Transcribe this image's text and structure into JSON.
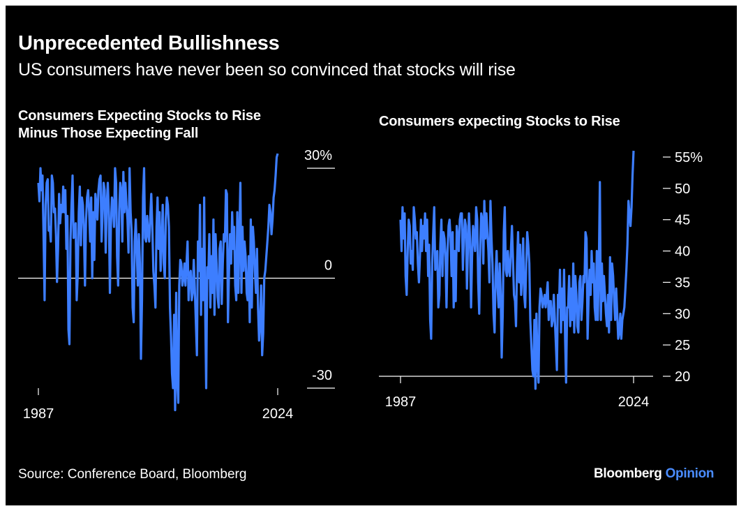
{
  "title": "Unprecedented Bullishness",
  "subtitle": "US consumers have never been so convinced that stocks will rise",
  "source": "Source: Conference Board, Bloomberg",
  "brand": {
    "name": "Bloomberg",
    "accent": "Opinion"
  },
  "colors": {
    "background": "#000000",
    "line": "#3d7eff",
    "text": "#ffffff",
    "brand_accent": "#4a8cff"
  },
  "chart_data": [
    {
      "type": "line",
      "title": "Consumers Expecting Stocks to Rise\nMinus Those Expecting Fall",
      "x_start": 1987,
      "x_end": 2024,
      "xlim": [
        1987,
        2024
      ],
      "ylim": [
        -30,
        30
      ],
      "x_ticks": [
        1987,
        2024
      ],
      "y_ticks": [
        {
          "value": 30,
          "label": "30%"
        },
        {
          "value": 0,
          "label": "0"
        },
        {
          "value": -30,
          "label": "-30"
        }
      ],
      "zero_line": true,
      "y_axis_side": "right",
      "series": [
        {
          "values": [
            26,
            21,
            30,
            24,
            28,
            12,
            -6,
            20,
            26,
            27,
            13,
            14,
            10,
            28,
            26,
            18,
            19,
            12,
            -1,
            8,
            23,
            15,
            20,
            18,
            25,
            18,
            24,
            8,
            17,
            -14,
            -18,
            10,
            20,
            28,
            11,
            13,
            15,
            -6,
            1,
            18,
            25,
            9,
            22,
            20,
            13,
            -2,
            16,
            22,
            24,
            18,
            10,
            22,
            0,
            18,
            5,
            23,
            20,
            16,
            24,
            27,
            28,
            10,
            18,
            26,
            24,
            7,
            20,
            26,
            18,
            -4,
            14,
            22,
            20,
            14,
            30,
            26,
            6,
            -2,
            18,
            26,
            24,
            10,
            29,
            18,
            26,
            20,
            16,
            7,
            30,
            18,
            13,
            -8,
            -12,
            10,
            16,
            7,
            -2,
            12,
            4,
            -22,
            -6,
            22,
            30,
            11,
            10,
            17,
            12,
            10,
            17,
            23,
            14,
            2,
            -2,
            -8,
            14,
            22,
            8,
            18,
            2,
            10,
            20,
            4,
            0,
            16,
            22,
            20,
            14,
            -8,
            -16,
            -26,
            -30,
            -10,
            -36,
            -4,
            -28,
            -34,
            -2,
            5,
            4,
            -2,
            0,
            4,
            -2,
            4,
            10,
            -6,
            1,
            2,
            -6,
            -4,
            5,
            -3,
            -12,
            -21,
            10,
            2,
            20,
            -10,
            8,
            -6,
            22,
            -9,
            -30,
            3,
            0,
            12,
            -8,
            6,
            -4,
            16,
            -10,
            12,
            4,
            -5,
            -8,
            8,
            10,
            -7,
            4,
            12,
            10,
            24,
            23,
            -12,
            2,
            12,
            4,
            18,
            8,
            14,
            -2,
            -6,
            18,
            -4,
            12,
            26,
            -4,
            14,
            2,
            10,
            6,
            -4,
            -6,
            6,
            -12,
            16,
            -8,
            14,
            10,
            2,
            -4,
            8,
            -8,
            -17,
            -12,
            -2,
            -21,
            -15,
            0,
            2,
            6,
            10,
            14,
            20,
            18,
            12,
            16,
            22,
            24,
            28,
            33,
            34
          ]
        }
      ]
    },
    {
      "type": "line",
      "title": "Consumers expecting Stocks to Rise",
      "x_start": 1987,
      "x_end": 2024,
      "xlim": [
        1987,
        2024
      ],
      "ylim": [
        20,
        56
      ],
      "x_ticks": [
        1987,
        2024
      ],
      "y_ticks": [
        {
          "value": 55,
          "label": "55%"
        },
        {
          "value": 50,
          "label": "50"
        },
        {
          "value": 45,
          "label": "45"
        },
        {
          "value": 40,
          "label": "40"
        },
        {
          "value": 35,
          "label": "35"
        },
        {
          "value": 30,
          "label": "30"
        },
        {
          "value": 25,
          "label": "25"
        },
        {
          "value": 20,
          "label": "20"
        }
      ],
      "y_axis_side": "right",
      "series": [
        {
          "values": [
            45,
            40,
            47,
            42,
            46,
            36,
            33,
            40,
            45,
            44,
            38,
            40,
            37,
            47,
            45,
            42,
            43,
            38,
            35,
            39,
            45,
            40,
            44,
            42,
            46,
            40,
            45,
            36,
            41,
            29,
            26,
            38,
            43,
            47,
            37,
            39,
            40,
            31,
            33,
            41,
            45,
            36,
            43,
            42,
            39,
            31,
            40,
            44,
            45,
            42,
            36,
            43,
            31,
            40,
            32,
            44,
            42,
            40,
            45,
            46,
            46,
            37,
            42,
            45,
            44,
            34,
            41,
            46,
            42,
            31,
            39,
            44,
            42,
            40,
            47,
            45,
            35,
            30,
            41,
            46,
            45,
            38,
            48,
            42,
            46,
            43,
            40,
            35,
            48,
            42,
            38,
            30,
            27,
            36,
            40,
            34,
            31,
            38,
            33,
            23,
            30,
            43,
            47,
            37,
            36,
            40,
            37,
            36,
            40,
            44,
            39,
            33,
            32,
            28,
            38,
            43,
            35,
            41,
            33,
            36,
            42,
            33,
            31,
            38,
            43,
            41,
            38,
            29,
            25,
            21,
            20,
            29,
            18,
            30,
            22,
            19,
            31,
            34,
            33,
            31,
            32,
            33,
            31,
            33,
            35,
            29,
            32,
            32,
            28,
            29,
            33,
            29,
            25,
            21,
            33,
            31,
            37,
            27,
            34,
            29,
            37,
            26,
            19,
            31,
            31,
            36,
            28,
            34,
            29,
            38,
            27,
            36,
            33,
            28,
            27,
            35,
            36,
            29,
            32,
            36,
            35,
            43,
            42,
            26,
            32,
            37,
            33,
            40,
            35,
            38,
            31,
            29,
            40,
            29,
            37,
            51,
            29,
            38,
            32,
            36,
            33,
            30,
            28,
            33,
            27,
            39,
            29,
            38,
            36,
            32,
            29,
            34,
            30,
            26,
            27,
            30,
            26,
            29,
            30,
            31,
            34,
            37,
            41,
            48,
            46,
            44,
            47,
            52,
            56
          ]
        }
      ]
    }
  ]
}
